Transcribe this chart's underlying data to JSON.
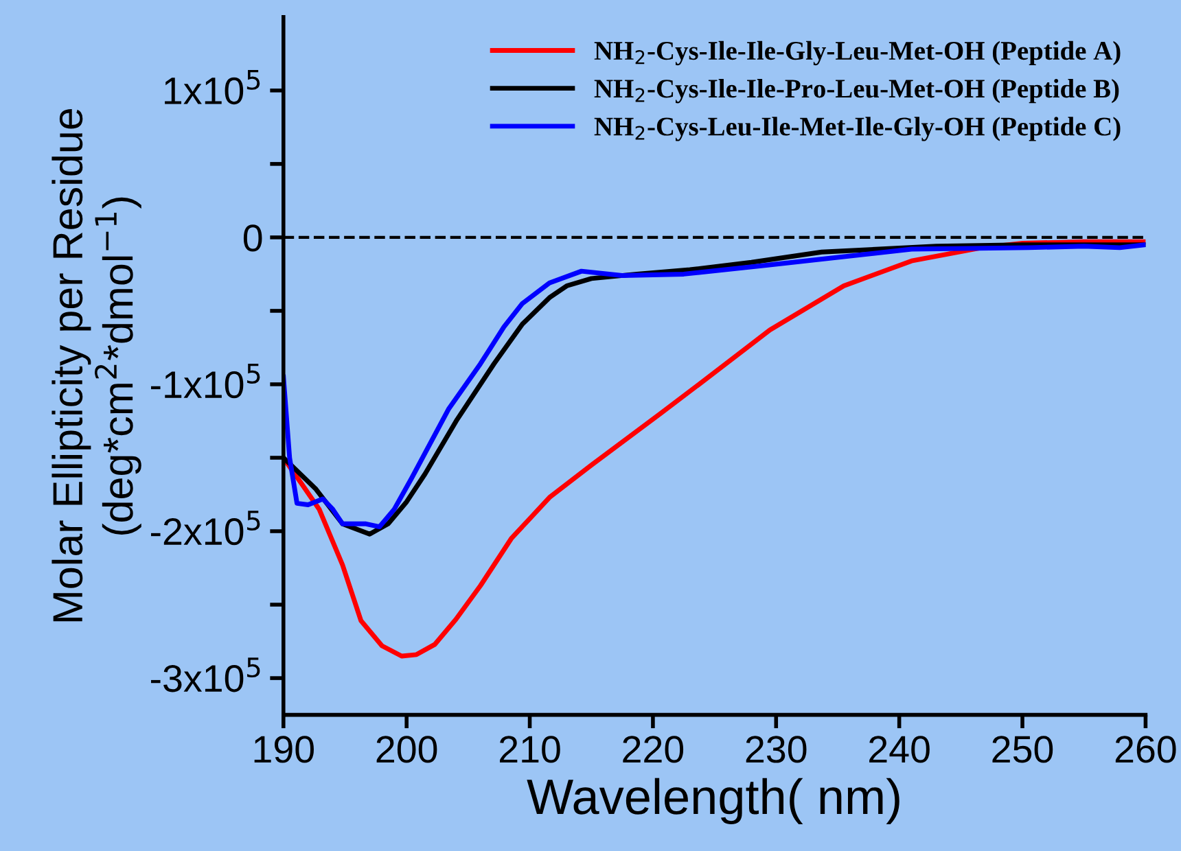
{
  "chart_data": {
    "type": "line",
    "xlabel": "Wavelength( nm)",
    "ylabel": "Molar Ellipticity per Residue\n(deg*cm$^{2}$*dmol$^{−1}$)",
    "xlim": [
      190,
      260
    ],
    "ylim": [
      -325000,
      150000
    ],
    "xticks": [
      190,
      200,
      210,
      220,
      230,
      240,
      250,
      260
    ],
    "yticks": [
      {
        "value": 100000,
        "label": "1x10$^{5}$"
      },
      {
        "value": 50000,
        "label": null
      },
      {
        "value": 0,
        "label": "0"
      },
      {
        "value": -50000,
        "label": null
      },
      {
        "value": -100000,
        "label": "-1x10$^{5}$"
      },
      {
        "value": -150000,
        "label": null
      },
      {
        "value": -200000,
        "label": "-2x10$^{5}$"
      },
      {
        "value": -250000,
        "label": null
      },
      {
        "value": -300000,
        "label": "-3x10$^{5}$"
      }
    ],
    "grid": false,
    "legend": "top right",
    "line_style": "solid",
    "marker": "none",
    "ref_lines": [
      {
        "axis": "y",
        "value": 0,
        "color": "#000000",
        "line_style": "dashed"
      }
    ],
    "series": [
      {
        "name": "NH$_{2}$-Cys-Ile-Ile-Gly-Leu-Met-OH (Peptide A)",
        "color": "#ff0000",
        "x": [
          190,
          191.5,
          192.9,
          194.8,
          196.3,
          198,
          199.6,
          200.8,
          202.3,
          204,
          206,
          208.5,
          211.6,
          215,
          220.6,
          225,
          229.5,
          235.5,
          241,
          246.7,
          250,
          255,
          260
        ],
        "values": [
          -150000,
          -168000,
          -185000,
          -223000,
          -261000,
          -278000,
          -285000,
          -284000,
          -277000,
          -260000,
          -237000,
          -205000,
          -177000,
          -155000,
          -120000,
          -92000,
          -63000,
          -33000,
          -16000,
          -7000,
          -4000,
          -3000,
          -3000
        ]
      },
      {
        "name": "NH$_{2}$-Cys-Ile-Ile-Pro-Leu-Met-OH (Peptide B)",
        "color": "#000000",
        "x": [
          190,
          192.6,
          194.8,
          197,
          198.5,
          200,
          201.5,
          204.1,
          207.1,
          209.4,
          211.6,
          213,
          215,
          218.7,
          223,
          228,
          233.7,
          243,
          250,
          260
        ],
        "values": [
          -150000,
          -171000,
          -195000,
          -202000,
          -195000,
          -180000,
          -161000,
          -124000,
          -86000,
          -59000,
          -41000,
          -33000,
          -28000,
          -25000,
          -22000,
          -17000,
          -10000,
          -6000,
          -5000,
          -5000
        ]
      },
      {
        "name": "NH$_{2}$-Cys-Leu-Ile-Met-Ile-Gly-OH (Peptide C)",
        "color": "#0000ff",
        "x": [
          190,
          190.5,
          191.1,
          192,
          193.2,
          194,
          194.8,
          196.7,
          197.8,
          199,
          200.4,
          203.4,
          206,
          207.9,
          209.4,
          211.6,
          214.2,
          217.5,
          222.5,
          229.2,
          241,
          250.5,
          255,
          257.9,
          260
        ],
        "values": [
          -95000,
          -150000,
          -181000,
          -182000,
          -178000,
          -185000,
          -195000,
          -195000,
          -197000,
          -185000,
          -164000,
          -117000,
          -86000,
          -61000,
          -45000,
          -31000,
          -23000,
          -26000,
          -25000,
          -19000,
          -8000,
          -7000,
          -6000,
          -7000,
          -5000
        ]
      }
    ]
  }
}
